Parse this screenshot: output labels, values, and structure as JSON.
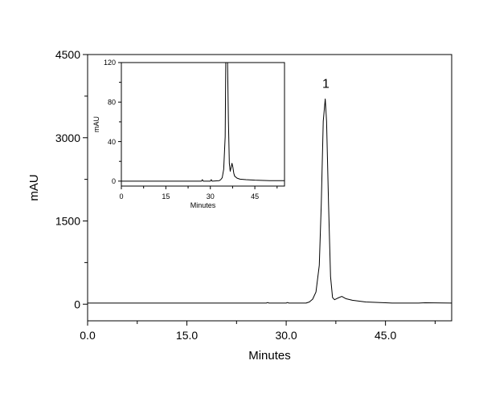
{
  "chart_data": [
    {
      "type": "line",
      "xlabel": "Minutes",
      "ylabel": "mAU",
      "xlim": [
        0,
        55
      ],
      "ylim": [
        -300,
        4500
      ],
      "x_ticks": [
        0.0,
        15.0,
        30.0,
        45.0
      ],
      "x_tick_labels": [
        "0.0",
        "15.0",
        "30.0",
        "45.0"
      ],
      "y_ticks": [
        0,
        1500,
        3000,
        4500
      ],
      "y_tick_labels": [
        "0",
        "1500",
        "3000",
        "4500"
      ],
      "annotations": [
        {
          "text": "1",
          "x": 36.0,
          "y": 3900
        }
      ],
      "series": [
        {
          "x": [
            0,
            27,
            27.2,
            27.4,
            30,
            30.2,
            30.4,
            33,
            33.5,
            34,
            34.5,
            35.0,
            35.3,
            35.6,
            35.9,
            36.1,
            36.4,
            36.7,
            37.0,
            37.3,
            37.8,
            38.4,
            39.0,
            40,
            42,
            45,
            46,
            50,
            51,
            55
          ],
          "y": [
            20,
            20,
            30,
            20,
            20,
            30,
            20,
            20,
            40,
            90,
            220,
            700,
            1800,
            3300,
            3700,
            3300,
            1800,
            500,
            120,
            80,
            110,
            140,
            100,
            70,
            40,
            25,
            20,
            20,
            25,
            20
          ]
        }
      ]
    },
    {
      "type": "line",
      "xlabel": "Minutes",
      "ylabel": "mAU",
      "xlim": [
        0,
        55
      ],
      "ylim": [
        -5,
        120
      ],
      "x_ticks": [
        0,
        15,
        30,
        45
      ],
      "x_tick_labels": [
        "0",
        "15",
        "30",
        "45"
      ],
      "y_ticks": [
        0,
        40,
        80,
        120
      ],
      "y_tick_labels": [
        "0",
        "40",
        "80",
        "120"
      ],
      "series": [
        {
          "x": [
            0,
            20,
            27,
            27.3,
            27.6,
            30,
            30.3,
            30.6,
            33,
            33.5,
            34,
            34.5,
            35.0,
            35.2,
            35.5,
            35.8,
            36.1,
            36.4,
            36.7,
            37.0,
            37.3,
            37.6,
            37.9,
            38.2,
            38.6,
            39.0,
            40,
            42,
            45,
            50,
            55
          ],
          "y": [
            0,
            0,
            0,
            1.5,
            0,
            0,
            1.5,
            0,
            0.5,
            1.5,
            3.5,
            12,
            45,
            120,
            120,
            120,
            60,
            18,
            10,
            14,
            18,
            14,
            8,
            5,
            4,
            3,
            2,
            1.5,
            1,
            0.5,
            0.5
          ]
        }
      ]
    }
  ]
}
